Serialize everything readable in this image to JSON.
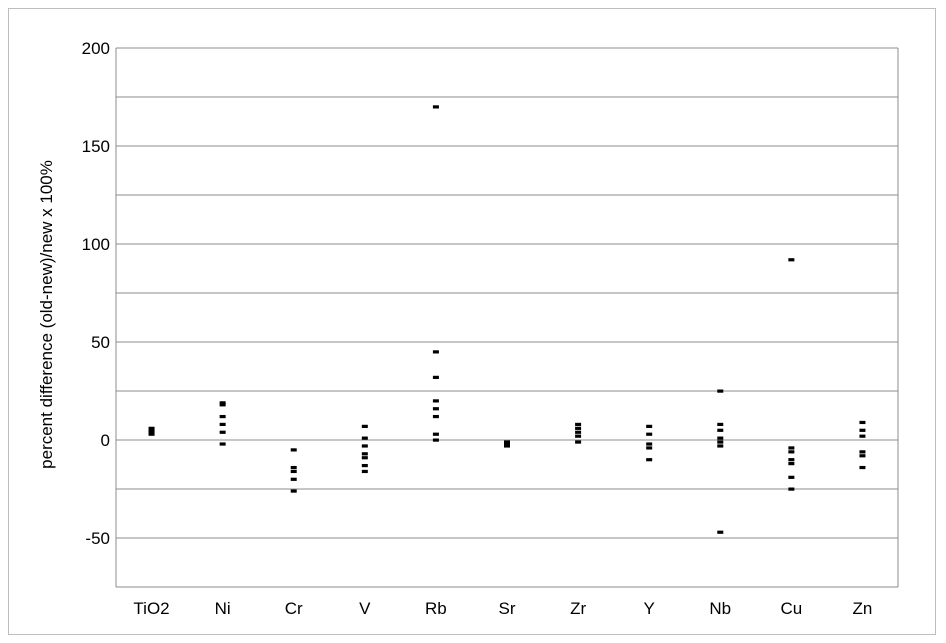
{
  "chart_data": {
    "type": "scatter",
    "title": "",
    "xlabel": "",
    "ylabel": "percent difference (old-new)/new x 100%",
    "categories": [
      "TiO2",
      "Ni",
      "Cr",
      "V",
      "Rb",
      "Sr",
      "Zr",
      "Y",
      "Nb",
      "Cu",
      "Zn"
    ],
    "ylim": [
      -75,
      200
    ],
    "yticks": [
      200,
      150,
      100,
      50,
      0,
      -50
    ],
    "grid": true,
    "legend": "none",
    "marker_color": "#000000",
    "grid_color": "#8c8c8c",
    "points": {
      "TiO2": [
        3,
        4,
        5,
        6
      ],
      "Ni": [
        -2,
        4,
        8,
        12,
        18,
        19
      ],
      "Cr": [
        -5,
        -14,
        -16,
        -20,
        -26
      ],
      "V": [
        7,
        1,
        -3,
        -7,
        -9,
        -13,
        -16
      ],
      "Rb": [
        170,
        45,
        32,
        20,
        16,
        12,
        3,
        0
      ],
      "Sr": [
        -1,
        -2,
        -3
      ],
      "Zr": [
        8,
        6,
        4,
        2,
        -1
      ],
      "Y": [
        7,
        3,
        -2,
        -4,
        -10
      ],
      "Nb": [
        25,
        8,
        5,
        1,
        -1,
        -3,
        -47
      ],
      "Cu": [
        92,
        -4,
        -6,
        -10,
        -12,
        -19,
        -25
      ],
      "Zn": [
        9,
        5,
        2,
        -6,
        -8,
        -14
      ]
    }
  }
}
